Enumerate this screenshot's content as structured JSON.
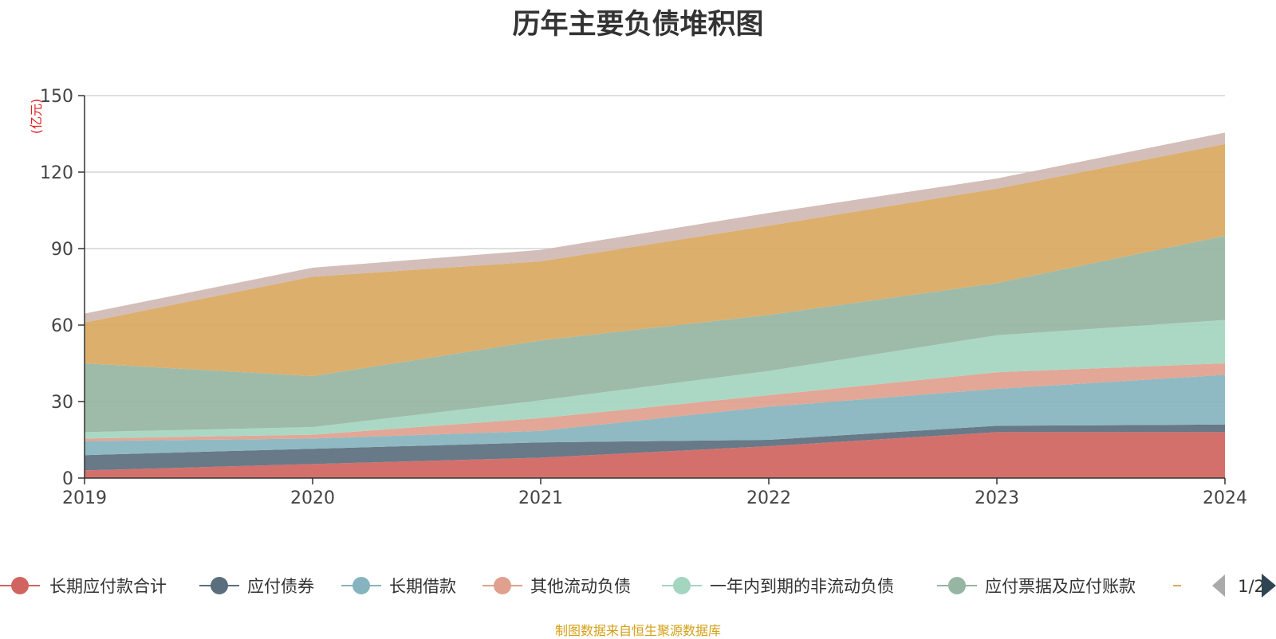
{
  "source": "制图数据来自恒生聚源数据库",
  "pager": {
    "text": "1/2"
  },
  "colors": {
    "长期应付款合计": "#d06460",
    "应付债券": "#5b6e7d",
    "长期借款": "#86b4be",
    "其他流动负债": "#e0a08d",
    "一年内到期的非流动负债": "#a4d5bf",
    "应付票据及应付账款": "#96b5a2",
    "top": "#d9a860",
    "cap": "#cfb8b3"
  },
  "chart_data": {
    "type": "area",
    "stacked": true,
    "title": "历年主要负债堆积图",
    "ylabel": "(亿元)",
    "ylim": [
      0,
      150
    ],
    "yticks": [
      0,
      30,
      60,
      90,
      120,
      150
    ],
    "x": [
      "2019",
      "2020",
      "2021",
      "2022",
      "2023",
      "2024"
    ],
    "grid": true,
    "legend_position": "bottom",
    "series": [
      {
        "name": "长期应付款合计",
        "values": [
          3,
          5.5,
          8,
          12.5,
          18,
          18
        ]
      },
      {
        "name": "应付债券",
        "values": [
          6,
          6,
          6,
          2.5,
          2.5,
          3
        ]
      },
      {
        "name": "长期借款",
        "values": [
          5.5,
          4,
          4.5,
          13,
          14.5,
          19.5
        ]
      },
      {
        "name": "其他流动负债",
        "values": [
          1,
          1.5,
          5,
          4.5,
          6.5,
          4.5
        ]
      },
      {
        "name": "一年内到期的非流动负债",
        "values": [
          2.5,
          3,
          7,
          9.5,
          14.5,
          17
        ]
      },
      {
        "name": "应付票据及应付账款",
        "values": [
          27,
          20,
          23.5,
          22,
          20.5,
          33
        ]
      },
      {
        "values": [
          16,
          39,
          31,
          35,
          37,
          36
        ]
      },
      {
        "values": [
          3.5,
          3.5,
          4.5,
          5,
          4,
          4.5
        ]
      }
    ]
  }
}
